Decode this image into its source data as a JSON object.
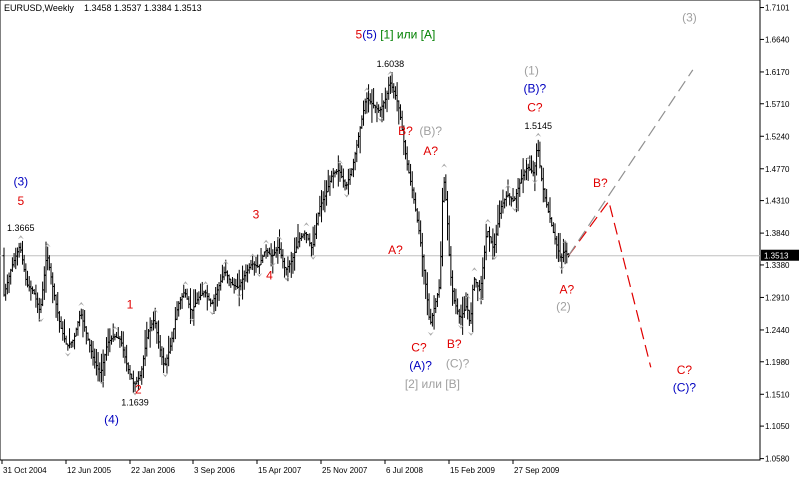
{
  "header": {
    "symbol": "EURUSD,Weekly",
    "ohlc": "1.3458 1.3537 1.3384 1.3513"
  },
  "chart_data": {
    "type": "line",
    "y_axis": {
      "min": 1.056,
      "max": 1.721,
      "ticks": [
        "1.7101",
        "1.6640",
        "1.6170",
        "1.5710",
        "1.5240",
        "1.4770",
        "1.4310",
        "1.3840",
        "1.3380",
        "1.2910",
        "1.2440",
        "1.1980",
        "1.1510",
        "1.1050",
        "1.0580"
      ],
      "current": "1.3513"
    },
    "x_axis": {
      "labels": [
        "31 Oct 2004",
        "12 Jun 2005",
        "22 Jan 2006",
        "3 Sep 2006",
        "15 Apr 2007",
        "25 Nov 2007",
        "6 Jul 2008",
        "15 Feb 2009",
        "27 Sep 2009"
      ]
    },
    "price_path": [
      [
        0,
        1.29
      ],
      [
        5,
        1.335
      ],
      [
        10,
        1.3665
      ],
      [
        14,
        1.31
      ],
      [
        18,
        1.3
      ],
      [
        22,
        1.27
      ],
      [
        26,
        1.355
      ],
      [
        30,
        1.3
      ],
      [
        34,
        1.25
      ],
      [
        38,
        1.22
      ],
      [
        42,
        1.23
      ],
      [
        46,
        1.27
      ],
      [
        50,
        1.235
      ],
      [
        54,
        1.2
      ],
      [
        58,
        1.18
      ],
      [
        62,
        1.225
      ],
      [
        66,
        1.235
      ],
      [
        70,
        1.23
      ],
      [
        74,
        1.19
      ],
      [
        78,
        1.1639
      ],
      [
        82,
        1.18
      ],
      [
        86,
        1.24
      ],
      [
        90,
        1.26
      ],
      [
        93,
        1.22
      ],
      [
        96,
        1.19
      ],
      [
        100,
        1.225
      ],
      [
        104,
        1.28
      ],
      [
        108,
        1.3
      ],
      [
        112,
        1.27
      ],
      [
        116,
        1.29
      ],
      [
        120,
        1.3
      ],
      [
        124,
        1.28
      ],
      [
        128,
        1.305
      ],
      [
        132,
        1.33
      ],
      [
        136,
        1.31
      ],
      [
        140,
        1.305
      ],
      [
        144,
        1.325
      ],
      [
        148,
        1.34
      ],
      [
        152,
        1.335
      ],
      [
        156,
        1.36
      ],
      [
        160,
        1.35
      ],
      [
        164,
        1.365
      ],
      [
        168,
        1.33
      ],
      [
        172,
        1.345
      ],
      [
        176,
        1.375
      ],
      [
        180,
        1.385
      ],
      [
        184,
        1.36
      ],
      [
        188,
        1.42
      ],
      [
        192,
        1.44
      ],
      [
        196,
        1.47
      ],
      [
        200,
        1.475
      ],
      [
        204,
        1.45
      ],
      [
        208,
        1.48
      ],
      [
        212,
        1.53
      ],
      [
        216,
        1.58
      ],
      [
        220,
        1.57
      ],
      [
        224,
        1.56
      ],
      [
        228,
        1.58
      ],
      [
        230,
        1.6038
      ],
      [
        234,
        1.58
      ],
      [
        236,
        1.56
      ],
      [
        240,
        1.49
      ],
      [
        244,
        1.44
      ],
      [
        248,
        1.38
      ],
      [
        252,
        1.3
      ],
      [
        254,
        1.25
      ],
      [
        256,
        1.27
      ],
      [
        258,
        1.29
      ],
      [
        260,
        1.31
      ],
      [
        262,
        1.47
      ],
      [
        264,
        1.42
      ],
      [
        266,
        1.33
      ],
      [
        268,
        1.29
      ],
      [
        272,
        1.26
      ],
      [
        276,
        1.28
      ],
      [
        278,
        1.25
      ],
      [
        280,
        1.32
      ],
      [
        284,
        1.3
      ],
      [
        288,
        1.39
      ],
      [
        292,
        1.36
      ],
      [
        296,
        1.42
      ],
      [
        300,
        1.44
      ],
      [
        304,
        1.43
      ],
      [
        308,
        1.46
      ],
      [
        312,
        1.48
      ],
      [
        316,
        1.47
      ],
      [
        318,
        1.5145
      ],
      [
        320,
        1.47
      ],
      [
        322,
        1.44
      ],
      [
        324,
        1.42
      ],
      [
        328,
        1.38
      ],
      [
        332,
        1.345
      ],
      [
        334,
        1.36
      ],
      [
        336,
        1.3513
      ]
    ],
    "forecast": [
      [
        336,
        1.3513
      ],
      [
        360,
        1.43
      ],
      [
        385,
        1.19
      ]
    ],
    "forecast_alt": [
      [
        336,
        1.3513
      ],
      [
        410,
        1.62
      ]
    ],
    "price_labels": [
      {
        "text": "1.3665",
        "i": 10
      },
      {
        "text": "1.1639",
        "i": 78
      },
      {
        "text": "1.6038",
        "i": 230
      },
      {
        "text": "1.5145",
        "i": 318
      }
    ],
    "wave_labels": [
      {
        "id": "w3-circle",
        "text": "(3)",
        "color": "#0000c0",
        "i": 10,
        "price": 1.453
      },
      {
        "id": "w5",
        "text": "5",
        "color": "#e00000",
        "i": 10,
        "price": 1.425
      },
      {
        "id": "w1",
        "text": "1",
        "color": "#e00000",
        "i": 75,
        "price": 1.275
      },
      {
        "id": "w2",
        "text": "2",
        "color": "#e00000",
        "i": 80,
        "price": 1.152
      },
      {
        "id": "w4-circle",
        "text": "(4)",
        "color": "#0000c0",
        "i": 64,
        "price": 1.109
      },
      {
        "id": "w3",
        "text": "3",
        "color": "#e00000",
        "i": 150,
        "price": 1.405
      },
      {
        "id": "w4",
        "text": "4",
        "color": "#e00000",
        "i": 158,
        "price": 1.317
      },
      {
        "id": "b-q-top",
        "text": "B?",
        "color": "#e00000",
        "i": 239,
        "price": 1.526
      },
      {
        "id": "b-paren-q",
        "text": "(B)?",
        "color": "#a0a0a0",
        "i": 254,
        "price": 1.526
      },
      {
        "id": "a-q-top",
        "text": "A?",
        "color": "#e00000",
        "i": 254,
        "price": 1.497
      },
      {
        "id": "a-q-mid",
        "text": "A?",
        "color": "#e00000",
        "i": 233,
        "price": 1.354
      },
      {
        "id": "c-q-bot",
        "text": "C?",
        "color": "#e00000",
        "i": 247,
        "price": 1.213
      },
      {
        "id": "b-q-bot",
        "text": "B?",
        "color": "#e00000",
        "i": 268,
        "price": 1.218
      },
      {
        "id": "a-paren-q",
        "text": "(A)?",
        "color": "#0000c0",
        "i": 248,
        "price": 1.187
      },
      {
        "id": "c-paren-q",
        "text": "(C)?",
        "color": "#a0a0a0",
        "i": 270,
        "price": 1.19
      },
      {
        "id": "w1-paren-top",
        "text": "(1)",
        "color": "#a0a0a0",
        "i": 314,
        "price": 1.613
      },
      {
        "id": "b-paren-q-top",
        "text": "(B)?",
        "color": "#0000c0",
        "i": 316,
        "price": 1.587
      },
      {
        "id": "c-q-top",
        "text": "C?",
        "color": "#e00000",
        "i": 316,
        "price": 1.56
      },
      {
        "id": "a-q-low",
        "text": "A?",
        "color": "#e00000",
        "i": 335,
        "price": 1.297
      },
      {
        "id": "w2-paren",
        "text": "(2)",
        "color": "#a0a0a0",
        "i": 333,
        "price": 1.272
      },
      {
        "id": "b-q-fore",
        "text": "B?",
        "color": "#e00000",
        "i": 355,
        "price": 1.451
      },
      {
        "id": "c-q-fore",
        "text": "C?",
        "color": "#e00000",
        "i": 405,
        "price": 1.18
      },
      {
        "id": "c-paren-q-fore",
        "text": "(C)?",
        "color": "#0000c0",
        "i": 405,
        "price": 1.155
      },
      {
        "id": "w3-paren-fore",
        "text": "(3)",
        "color": "#a0a0a0",
        "i": 408,
        "price": 1.69
      }
    ],
    "rich_labels": [
      {
        "id": "top-five",
        "i": 233,
        "price": 1.665,
        "parts": [
          {
            "text": "5",
            "color": "#e00000"
          },
          {
            "text": "(5)",
            "color": "#0000c0"
          },
          {
            "text": " [1] или [A]",
            "color": "#008000"
          }
        ]
      },
      {
        "id": "bottom-or",
        "i": 255,
        "price": 1.16,
        "parts": [
          {
            "text": "[2] или [B]",
            "color": "#a0a0a0"
          }
        ]
      }
    ]
  }
}
